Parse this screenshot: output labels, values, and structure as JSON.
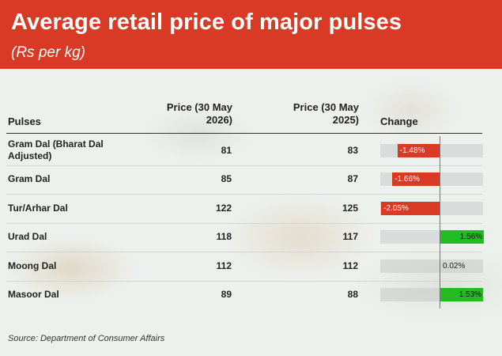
{
  "header": {
    "title": "Average retail price of major pulses",
    "subtitle": "(Rs per kg)"
  },
  "table": {
    "col_pulses": "Pulses",
    "col_price_2026_l1": "Price (30 May",
    "col_price_2026_l2": "2026)",
    "col_price_2025_l1": "Price (30 May",
    "col_price_2025_l2": "2025)",
    "col_change": "Change"
  },
  "chart_data": {
    "type": "table",
    "columns": [
      "Pulses",
      "Price (30 May 2026)",
      "Price (30 May 2025)",
      "Change"
    ],
    "rows": [
      {
        "pulse_l1": "Gram Dal (Bharat Dal",
        "pulse_l2": "Adjusted)",
        "price_2026": "81",
        "price_2025": "83",
        "change": -1.48,
        "change_label": "-1.48%"
      },
      {
        "pulse_l1": "Gram Dal",
        "pulse_l2": "",
        "price_2026": "85",
        "price_2025": "87",
        "change": -1.66,
        "change_label": "-1.66%"
      },
      {
        "pulse_l1": "Tur/Arhar Dal",
        "pulse_l2": "",
        "price_2026": "122",
        "price_2025": "125",
        "change": -2.05,
        "change_label": "-2.05%"
      },
      {
        "pulse_l1": "Urad Dal",
        "pulse_l2": "",
        "price_2026": "118",
        "price_2025": "117",
        "change": 1.56,
        "change_label": "1.56%"
      },
      {
        "pulse_l1": "Moong Dal",
        "pulse_l2": "",
        "price_2026": "112",
        "price_2025": "112",
        "change": 0.02,
        "change_label": "0.02%"
      },
      {
        "pulse_l1": "Masoor Dal",
        "pulse_l2": "",
        "price_2026": "89",
        "price_2025": "88",
        "change": 1.53,
        "change_label": "1.53%"
      }
    ],
    "change_range": [
      -2.05,
      1.56
    ],
    "colors": {
      "negative": "#d93a26",
      "positive": "#22bb22"
    }
  },
  "footer": {
    "source": "Source: Department of Consumer Affairs"
  }
}
